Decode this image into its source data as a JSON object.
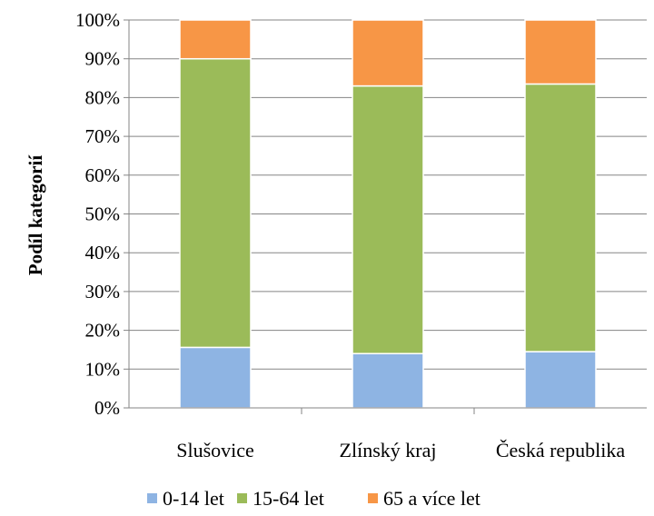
{
  "chart_data": {
    "type": "bar",
    "stacked": true,
    "percent": true,
    "categories": [
      "Slušovice",
      "Zlínský kraj",
      "Česká republika"
    ],
    "series": [
      {
        "name": "0-14 let",
        "values": [
          15.6,
          14.0,
          14.5
        ],
        "color": "#8EB4E3"
      },
      {
        "name": "15-64 let",
        "values": [
          74.4,
          69.0,
          69.0
        ],
        "color": "#9BBB59"
      },
      {
        "name": "65 a více let",
        "values": [
          10.0,
          17.0,
          16.5
        ],
        "color": "#F79646"
      }
    ],
    "ylabel": "Podíl kategorií",
    "xlabel": "",
    "ylim": [
      0,
      100
    ],
    "yticks": [
      "0%",
      "10%",
      "20%",
      "30%",
      "40%",
      "50%",
      "60%",
      "70%",
      "80%",
      "90%",
      "100%"
    ],
    "grid": true,
    "legend": "bottom"
  }
}
